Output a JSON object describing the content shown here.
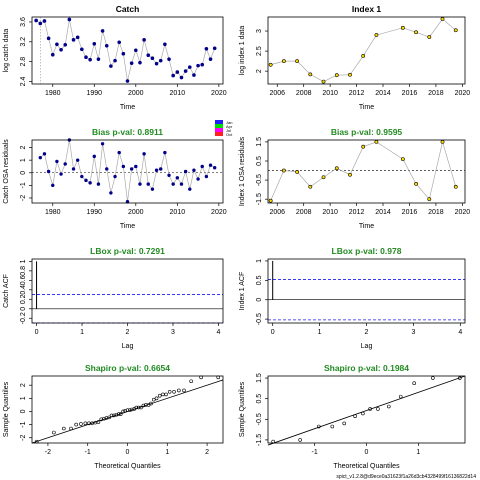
{
  "footer": "spict_v1.2.8@d9ece0a31623f1a26d3cb4328499f16136822d14",
  "legend": {
    "labels": [
      "Jan",
      "Apr",
      "Jul",
      "Oct"
    ],
    "colors": [
      "#2020ff",
      "#00dd00",
      "#ff00ff",
      "#ff2020"
    ]
  },
  "colors": {
    "bias_title": "#228B22",
    "catch_point": "#00008B",
    "index_point": "#ffd700",
    "lines": "#aaaaaa",
    "bound": "#1a1aff"
  },
  "chart_data": [
    {
      "type": "scatter",
      "title": "Catch",
      "xlabel": "Time",
      "ylabel": "log catch data",
      "xticks": [
        1980,
        1990,
        2000,
        2010,
        2020
      ],
      "yticks": [
        2.4,
        2.8,
        3.2,
        3.6
      ],
      "xlim": [
        1975,
        2021
      ],
      "ylim": [
        2.35,
        3.7
      ],
      "vline": 1977,
      "x": [
        1976,
        1977,
        1978,
        1979,
        1980,
        1981,
        1982,
        1983,
        1984,
        1985,
        1986,
        1987,
        1988,
        1989,
        1990,
        1991,
        1992,
        1993,
        1994,
        1995,
        1996,
        1997,
        1998,
        1999,
        2000,
        2001,
        2002,
        2003,
        2004,
        2005,
        2006,
        2007,
        2008,
        2009,
        2010,
        2011,
        2012,
        2013,
        2014,
        2015,
        2016,
        2017,
        2018,
        2019
      ],
      "y": [
        3.63,
        3.57,
        3.62,
        3.27,
        2.94,
        3.15,
        3.04,
        3.14,
        3.65,
        3.24,
        3.29,
        3.05,
        2.89,
        2.84,
        3.16,
        2.85,
        3.42,
        3.12,
        2.71,
        2.82,
        3.19,
        2.96,
        2.41,
        2.77,
        3.03,
        2.78,
        3.24,
        2.93,
        2.87,
        2.76,
        2.82,
        3.15,
        2.85,
        2.52,
        2.59,
        2.48,
        2.61,
        2.69,
        2.53,
        2.72,
        2.74,
        3.06,
        2.85,
        3.07
      ]
    },
    {
      "type": "line",
      "title": "Index 1",
      "xlabel": "Time",
      "ylabel": "log index 1 data",
      "xticks": [
        2006,
        2008,
        2010,
        2012,
        2014,
        2016,
        2018,
        2020
      ],
      "yticks": [
        2.0,
        2.5,
        3.0
      ],
      "xlim": [
        2005.3,
        2020.2
      ],
      "ylim": [
        1.68,
        3.35
      ],
      "x": [
        2005.5,
        2006.5,
        2007.5,
        2008.5,
        2009.5,
        2010.5,
        2011.5,
        2012.5,
        2013.5,
        2015.5,
        2016.5,
        2017.5,
        2018.5,
        2019.5
      ],
      "y": [
        2.16,
        2.25,
        2.25,
        1.92,
        1.74,
        1.9,
        1.91,
        2.38,
        2.9,
        3.08,
        2.97,
        2.85,
        3.3,
        3.02
      ]
    },
    {
      "type": "scatter",
      "title": "Bias p-val: 0.8911",
      "xlabel": "Time",
      "ylabel": "Catch OSA residuals",
      "xticks": [
        1980,
        1990,
        2000,
        2010,
        2020
      ],
      "yticks": [
        -2,
        -1,
        0,
        1,
        2
      ],
      "xlim": [
        1975,
        2021
      ],
      "ylim": [
        -2.4,
        2.6
      ],
      "x": [
        1977,
        1978,
        1979,
        1980,
        1981,
        1982,
        1983,
        1984,
        1985,
        1986,
        1987,
        1988,
        1989,
        1990,
        1991,
        1992,
        1993,
        1994,
        1995,
        1996,
        1997,
        1998,
        1999,
        2000,
        2001,
        2002,
        2003,
        2004,
        2005,
        2006,
        2007,
        2008,
        2009,
        2010,
        2011,
        2012,
        2013,
        2014,
        2015,
        2016,
        2017,
        2018,
        2019
      ],
      "y": [
        1.2,
        1.5,
        0.1,
        -1.0,
        0.9,
        -0.1,
        0.7,
        2.6,
        0.3,
        1.0,
        -0.3,
        -0.6,
        -0.8,
        1.3,
        -0.9,
        2.3,
        0.3,
        -1.6,
        -0.3,
        1.6,
        0.5,
        -2.3,
        0.3,
        0.5,
        -0.9,
        1.5,
        -0.9,
        -1.3,
        0.2,
        0.3,
        1.6,
        -0.2,
        -0.9,
        -0.4,
        -0.9,
        0.1,
        -1.3,
        0.2,
        -0.5,
        0.5,
        -0.3,
        0.6,
        0.4
      ]
    },
    {
      "type": "line",
      "title": "Bias p-val: 0.9595",
      "xlabel": "Time",
      "ylabel": "Index 1 OSA residuals",
      "xticks": [
        2006,
        2008,
        2010,
        2012,
        2014,
        2016,
        2018,
        2020
      ],
      "yticks": [
        -1.5,
        -0.5,
        0.5,
        1.5
      ],
      "xlim": [
        2005.3,
        2020.2
      ],
      "ylim": [
        -1.7,
        1.6
      ],
      "x": [
        2005.5,
        2006.5,
        2007.5,
        2008.5,
        2009.5,
        2010.5,
        2011.5,
        2012.5,
        2013.5,
        2015.5,
        2016.5,
        2017.5,
        2018.5,
        2019.5
      ],
      "y": [
        -1.58,
        0.0,
        -0.07,
        -0.85,
        -0.35,
        0.12,
        -0.22,
        1.25,
        1.5,
        0.6,
        -0.7,
        -1.5,
        1.5,
        -0.85
      ]
    },
    {
      "type": "bar",
      "title": "LBox p-val: 0.7291",
      "xlabel": "Lag",
      "ylabel": "Catch ACF",
      "xticks": [
        0,
        1,
        2,
        3,
        4
      ],
      "yticks": [
        -0.2,
        0.0,
        0.2,
        0.4,
        0.6,
        0.8,
        1.0
      ],
      "xlim": [
        -0.1,
        4.1
      ],
      "ylim": [
        -0.3,
        1.05
      ],
      "ci": 0.3,
      "x": [
        0,
        1,
        2,
        3,
        4
      ],
      "values": [
        1.0,
        0.0,
        0.0,
        0.0,
        0.0
      ]
    },
    {
      "type": "bar",
      "title": "LBox p-val: 0.978",
      "xlabel": "Lag",
      "ylabel": "Index 1 ACF",
      "xticks": [
        0,
        1,
        2,
        3,
        4
      ],
      "yticks": [
        -0.5,
        0.0,
        0.5,
        1.0
      ],
      "xlim": [
        -0.1,
        4.1
      ],
      "ylim": [
        -0.6,
        1.05
      ],
      "ci": 0.52,
      "x": [
        0,
        1,
        2,
        3,
        4
      ],
      "values": [
        1.0,
        0.0,
        0.0,
        0.0,
        0.0
      ]
    },
    {
      "type": "scatter",
      "title": "Shapiro p-val: 0.6654",
      "xlabel": "Theoretical Quantiles",
      "ylabel": "Sample Quantiles",
      "xticks": [
        -2,
        -1,
        0,
        1,
        2
      ],
      "yticks": [
        -2,
        -1,
        0,
        1,
        2
      ],
      "xlim": [
        -2.4,
        2.4
      ],
      "ylim": [
        -2.4,
        2.7
      ],
      "qqline": [
        [
          -2.4,
          -2.4
        ],
        [
          2.4,
          2.4
        ]
      ],
      "x": [
        -2.28,
        -1.85,
        -1.6,
        -1.42,
        -1.29,
        -1.17,
        -1.06,
        -0.97,
        -0.89,
        -0.81,
        -0.73,
        -0.66,
        -0.59,
        -0.53,
        -0.46,
        -0.4,
        -0.34,
        -0.28,
        -0.22,
        -0.17,
        -0.11,
        -0.06,
        0.0,
        0.06,
        0.11,
        0.17,
        0.22,
        0.28,
        0.34,
        0.4,
        0.46,
        0.53,
        0.59,
        0.66,
        0.73,
        0.81,
        0.89,
        0.97,
        1.06,
        1.17,
        1.29,
        1.42,
        1.6,
        1.85,
        2.28
      ],
      "y": [
        -2.3,
        -1.6,
        -1.3,
        -1.3,
        -1.0,
        -0.95,
        -0.9,
        -0.9,
        -0.9,
        -0.85,
        -0.8,
        -0.6,
        -0.55,
        -0.5,
        -0.45,
        -0.3,
        -0.3,
        -0.25,
        -0.2,
        -0.2,
        0.0,
        0.05,
        0.1,
        0.1,
        0.15,
        0.2,
        0.3,
        0.3,
        0.3,
        0.45,
        0.5,
        0.5,
        0.6,
        0.9,
        1.0,
        1.2,
        1.3,
        1.3,
        1.5,
        1.5,
        1.6,
        1.6,
        2.3,
        2.6,
        2.6
      ]
    },
    {
      "type": "scatter",
      "title": "Shapiro p-val: 0.1984",
      "xlabel": "Theoretical Quantiles",
      "ylabel": "Sample Quantiles",
      "xticks": [
        -1,
        0,
        1
      ],
      "yticks": [
        -1.5,
        -0.5,
        0.5,
        1.5
      ],
      "xlim": [
        -1.9,
        1.9
      ],
      "ylim": [
        -1.65,
        1.6
      ],
      "qqline": [
        [
          -1.9,
          -1.75
        ],
        [
          1.9,
          1.6
        ]
      ],
      "x": [
        -1.8,
        -1.28,
        -0.92,
        -0.66,
        -0.43,
        -0.22,
        -0.07,
        0.07,
        0.22,
        0.43,
        0.66,
        0.92,
        1.28,
        1.8
      ],
      "y": [
        -1.58,
        -1.5,
        -0.85,
        -0.85,
        -0.7,
        -0.35,
        -0.22,
        0.0,
        0.0,
        0.12,
        0.6,
        1.25,
        1.5,
        1.5
      ]
    }
  ]
}
